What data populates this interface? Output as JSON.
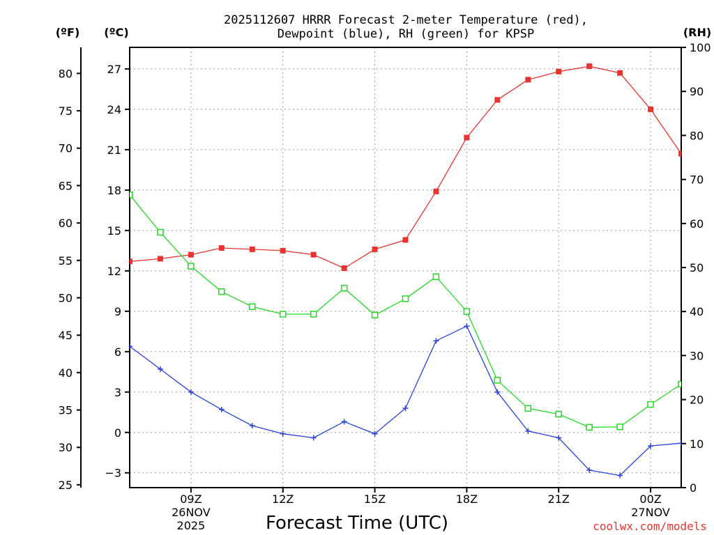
{
  "chart_data": {
    "type": "line",
    "title_lines": [
      "2025112607 HRRR Forecast 2-meter Temperature (red),",
      "Dewpoint (blue), RH (green) for KPSP"
    ],
    "xlabel": "Forecast Time (UTC)",
    "credit": "coolwx.com/models",
    "units": {
      "fahrenheit": "(ºF)",
      "celsius": "(ºC)",
      "rh": "(RH)"
    },
    "x_range": [
      7,
      25
    ],
    "celsius_range": [
      -4.1,
      28.6
    ],
    "rh_range": [
      0,
      100
    ],
    "grid": true,
    "x_ticks": [
      {
        "x": 9,
        "label": "09Z",
        "sub": [
          "26NOV",
          "2025"
        ]
      },
      {
        "x": 12,
        "label": "12Z",
        "sub": []
      },
      {
        "x": 15,
        "label": "15Z",
        "sub": []
      },
      {
        "x": 18,
        "label": "18Z",
        "sub": []
      },
      {
        "x": 21,
        "label": "21Z",
        "sub": []
      },
      {
        "x": 24,
        "label": "00Z",
        "sub": [
          "27NOV"
        ]
      }
    ],
    "celsius_ticks": [
      -3,
      0,
      3,
      6,
      9,
      12,
      15,
      18,
      21,
      24,
      27
    ],
    "fahrenheit_ticks": [
      25,
      30,
      35,
      40,
      45,
      50,
      55,
      60,
      65,
      70,
      75,
      80
    ],
    "rh_ticks": [
      0,
      10,
      20,
      30,
      40,
      50,
      60,
      70,
      80,
      90,
      100
    ],
    "hours": [
      7,
      8,
      9,
      10,
      11,
      12,
      13,
      14,
      15,
      16,
      17,
      18,
      19,
      20,
      21,
      22,
      23,
      24,
      25
    ],
    "series": [
      {
        "name": "Temperature",
        "axis": "celsius",
        "color": "#e8342e",
        "marker": "filled-square",
        "values": [
          12.7,
          12.9,
          13.2,
          13.7,
          13.6,
          13.5,
          13.2,
          12.2,
          13.6,
          14.3,
          17.9,
          21.9,
          24.7,
          26.2,
          26.8,
          27.2,
          26.7,
          24.0,
          20.7
        ]
      },
      {
        "name": "Dewpoint",
        "axis": "celsius",
        "color": "#2a3fe0",
        "marker": "plus",
        "values": [
          6.4,
          4.7,
          3.0,
          1.7,
          0.5,
          -0.1,
          -0.4,
          0.8,
          -0.1,
          1.8,
          6.8,
          7.9,
          3.0,
          0.1,
          -0.4,
          -2.8,
          -3.2,
          -1.0,
          -0.8
        ]
      },
      {
        "name": "RH",
        "axis": "rh",
        "color": "#1fdc1f",
        "marker": "open-square",
        "values": [
          66.5,
          58.0,
          50.3,
          44.5,
          41.1,
          39.4,
          39.4,
          45.3,
          39.2,
          42.9,
          47.9,
          40.0,
          24.4,
          18.0,
          16.7,
          13.7,
          13.8,
          18.9,
          23.5
        ]
      }
    ]
  }
}
